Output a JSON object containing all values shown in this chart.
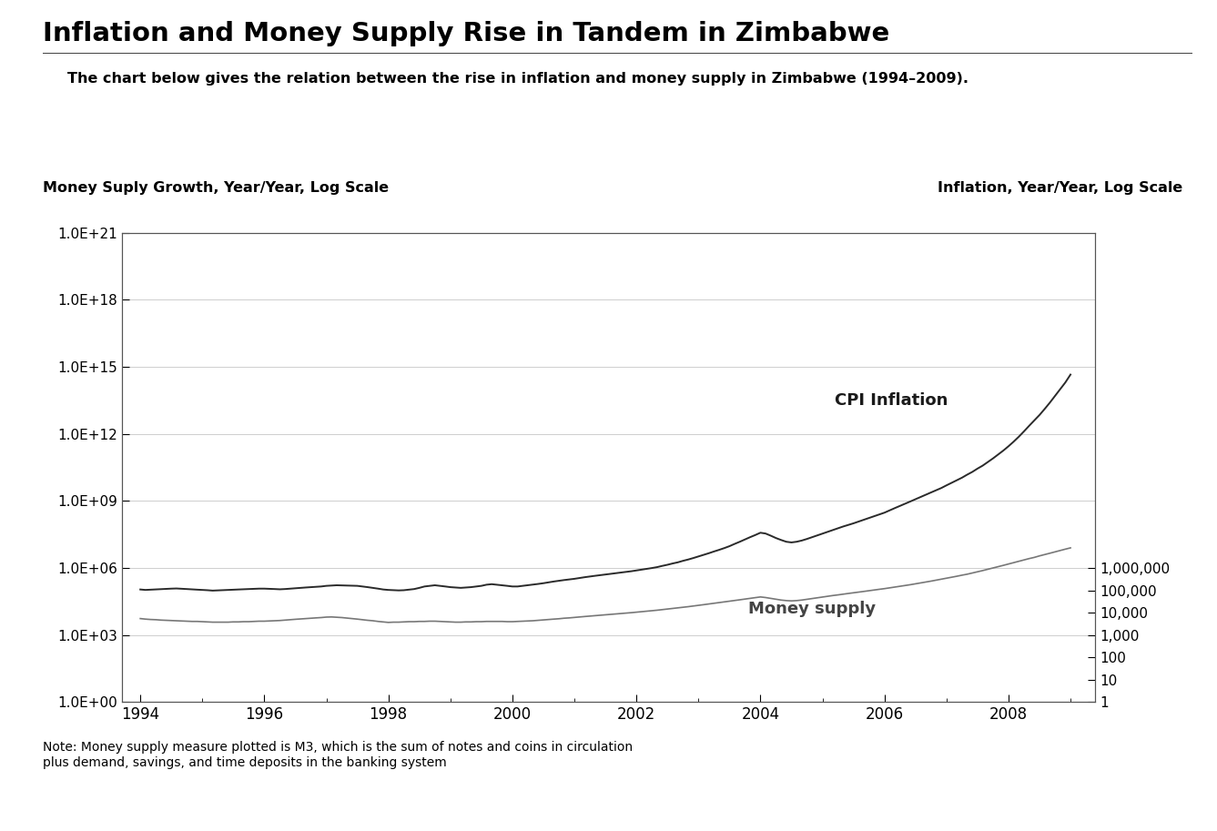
{
  "title": "Inflation and Money Supply Rise in Tandem in Zimbabwe",
  "subtitle": "The chart below gives the relation between the rise in inflation and money supply in Zimbabwe (1994–2009).",
  "left_ylabel": "Money Suply Growth, Year/Year, Log Scale",
  "right_ylabel": "Inflation, Year/Year, Log Scale",
  "note": "Note: Money supply measure plotted is M3, which is the sum of notes and coins in circulation\nplus demand, savings, and time deposits in the banking system",
  "cpi_label": "CPI Inflation",
  "money_label": "Money supply",
  "background_color": "#ffffff",
  "line_color_cpi": "#2a2a2a",
  "line_color_money": "#777777",
  "years": [
    1994.0,
    1994.083,
    1994.167,
    1994.25,
    1994.333,
    1994.417,
    1994.5,
    1994.583,
    1994.667,
    1994.75,
    1994.833,
    1994.917,
    1995.0,
    1995.083,
    1995.167,
    1995.25,
    1995.333,
    1995.417,
    1995.5,
    1995.583,
    1995.667,
    1995.75,
    1995.833,
    1995.917,
    1996.0,
    1996.083,
    1996.167,
    1996.25,
    1996.333,
    1996.417,
    1996.5,
    1996.583,
    1996.667,
    1996.75,
    1996.833,
    1996.917,
    1997.0,
    1997.083,
    1997.167,
    1997.25,
    1997.333,
    1997.417,
    1997.5,
    1997.583,
    1997.667,
    1997.75,
    1997.833,
    1997.917,
    1998.0,
    1998.083,
    1998.167,
    1998.25,
    1998.333,
    1998.417,
    1998.5,
    1998.583,
    1998.667,
    1998.75,
    1998.833,
    1998.917,
    1999.0,
    1999.083,
    1999.167,
    1999.25,
    1999.333,
    1999.417,
    1999.5,
    1999.583,
    1999.667,
    1999.75,
    1999.833,
    1999.917,
    2000.0,
    2000.083,
    2000.167,
    2000.25,
    2000.333,
    2000.417,
    2000.5,
    2000.583,
    2000.667,
    2000.75,
    2000.833,
    2000.917,
    2001.0,
    2001.083,
    2001.167,
    2001.25,
    2001.333,
    2001.417,
    2001.5,
    2001.583,
    2001.667,
    2001.75,
    2001.833,
    2001.917,
    2002.0,
    2002.083,
    2002.167,
    2002.25,
    2002.333,
    2002.417,
    2002.5,
    2002.583,
    2002.667,
    2002.75,
    2002.833,
    2002.917,
    2003.0,
    2003.083,
    2003.167,
    2003.25,
    2003.333,
    2003.417,
    2003.5,
    2003.583,
    2003.667,
    2003.75,
    2003.833,
    2003.917,
    2004.0,
    2004.083,
    2004.167,
    2004.25,
    2004.333,
    2004.417,
    2004.5,
    2004.583,
    2004.667,
    2004.75,
    2004.833,
    2004.917,
    2005.0,
    2005.083,
    2005.167,
    2005.25,
    2005.333,
    2005.417,
    2005.5,
    2005.583,
    2005.667,
    2005.75,
    2005.833,
    2005.917,
    2006.0,
    2006.083,
    2006.167,
    2006.25,
    2006.333,
    2006.417,
    2006.5,
    2006.583,
    2006.667,
    2006.75,
    2006.833,
    2006.917,
    2007.0,
    2007.083,
    2007.167,
    2007.25,
    2007.333,
    2007.417,
    2007.5,
    2007.583,
    2007.667,
    2007.75,
    2007.833,
    2007.917,
    2008.0,
    2008.083,
    2008.167,
    2008.25,
    2008.333,
    2008.417,
    2008.5,
    2008.583,
    2008.667,
    2008.75,
    2008.833,
    2008.917,
    2009.0
  ],
  "cpi_inflation": [
    110000.0,
    105000.0,
    108000.0,
    112000.0,
    115000.0,
    118000.0,
    120000.0,
    122000.0,
    118000.0,
    115000.0,
    112000.0,
    108000.0,
    105000.0,
    102000.0,
    98000.0,
    100000.0,
    102000.0,
    105000.0,
    108000.0,
    110000.0,
    112000.0,
    115000.0,
    118000.0,
    120000.0,
    120000.0,
    118000.0,
    115000.0,
    112000.0,
    115000.0,
    120000.0,
    125000.0,
    130000.0,
    135000.0,
    140000.0,
    145000.0,
    150000.0,
    160000.0,
    165000.0,
    170000.0,
    168000.0,
    165000.0,
    162000.0,
    160000.0,
    150000.0,
    140000.0,
    130000.0,
    120000.0,
    110000.0,
    105000.0,
    102000.0,
    100000.0,
    102000.0,
    108000.0,
    115000.0,
    130000.0,
    150000.0,
    160000.0,
    170000.0,
    160000.0,
    150000.0,
    140000.0,
    135000.0,
    130000.0,
    135000.0,
    140000.0,
    150000.0,
    160000.0,
    180000.0,
    190000.0,
    180000.0,
    170000.0,
    160000.0,
    150000.0,
    150000.0,
    160000.0,
    170000.0,
    180000.0,
    195000.0,
    210000.0,
    230000.0,
    250000.0,
    270000.0,
    290000.0,
    310000.0,
    330000.0,
    360000.0,
    390000.0,
    420000.0,
    450000.0,
    480000.0,
    510000.0,
    550000.0,
    590000.0,
    630000.0,
    670000.0,
    720000.0,
    780000.0,
    840000.0,
    920000.0,
    1000000.0,
    1100000.0,
    1250000.0,
    1400000.0,
    1600000.0,
    1800000.0,
    2100000.0,
    2400000.0,
    2800000.0,
    3300000.0,
    3900000.0,
    4600000.0,
    5500000.0,
    6500000.0,
    7800000.0,
    9500000.0,
    12000000.0,
    15000000.0,
    19000000.0,
    24000000.0,
    30000000.0,
    38000000.0,
    35000000.0,
    28000000.0,
    22000000.0,
    18000000.0,
    15000000.0,
    14000000.0,
    15000000.0,
    17000000.0,
    20000000.0,
    24000000.0,
    29000000.0,
    35000000.0,
    42000000.0,
    50000000.0,
    60000000.0,
    72000000.0,
    85000000.0,
    100000000.0,
    120000000.0,
    145000000.0,
    175000000.0,
    210000000.0,
    250000000.0,
    300000000.0,
    380000000.0,
    480000000.0,
    600000000.0,
    750000000.0,
    950000000.0,
    1200000000.0,
    1500000000.0,
    1900000000.0,
    2400000000.0,
    3000000000.0,
    3800000000.0,
    5000000000.0,
    6500000000.0,
    8500000000.0,
    11000000000.0,
    15000000000.0,
    20000000000.0,
    28000000000.0,
    38000000000.0,
    55000000000.0,
    80000000000.0,
    120000000000.0,
    180000000000.0,
    280000000000.0,
    450000000000.0,
    750000000000.0,
    1300000000000.0,
    2300000000000.0,
    4000000000000.0,
    7000000000000.0,
    13000000000000.0,
    25000000000000.0,
    50000000000000.0,
    100000000000000.0,
    200000000000000.0,
    450000000000000.0
  ],
  "money_supply": [
    5500,
    5200,
    5000,
    4900,
    4700,
    4600,
    4500,
    4400,
    4300,
    4200,
    4100,
    4100,
    4000,
    3900,
    3800,
    3800,
    3800,
    3800,
    3900,
    3900,
    4000,
    4000,
    4100,
    4200,
    4200,
    4300,
    4400,
    4500,
    4700,
    4900,
    5100,
    5300,
    5500,
    5700,
    5900,
    6100,
    6400,
    6500,
    6300,
    6100,
    5800,
    5500,
    5200,
    4900,
    4600,
    4400,
    4100,
    3900,
    3700,
    3800,
    3800,
    3900,
    4000,
    4000,
    4100,
    4100,
    4200,
    4200,
    4100,
    4000,
    3900,
    3800,
    3800,
    3900,
    3900,
    4000,
    4000,
    4100,
    4100,
    4100,
    4100,
    4000,
    4000,
    4100,
    4200,
    4300,
    4400,
    4600,
    4800,
    5000,
    5200,
    5400,
    5700,
    5900,
    6200,
    6500,
    6800,
    7100,
    7400,
    7800,
    8100,
    8500,
    8900,
    9300,
    9700,
    10100.0,
    10600.0,
    11100.0,
    11700.0,
    12300.0,
    13000.0,
    13800.0,
    14700.0,
    15600.0,
    16600.0,
    17600.0,
    18700.0,
    20000.0,
    21500.0,
    23000.0,
    24700.0,
    26500.0,
    28400.0,
    30500.0,
    32700.0,
    35200.0,
    38000.0,
    41000.0,
    44000.0,
    47500.0,
    51000.0,
    48000.0,
    44000.0,
    40000.0,
    37000.0,
    35000.0,
    34000.0,
    35000.0,
    37000.0,
    40000.0,
    43000.0,
    47000.0,
    51000.0,
    55000.0,
    59000.0,
    63000.0,
    68000.0,
    73000.0,
    78000.0,
    84000.0,
    90000.0,
    97000.0,
    104000.0,
    112000.0,
    120000.0,
    130000.0,
    140000.0,
    152000.0,
    165000.0,
    180000.0,
    197000.0,
    215000.0,
    235000.0,
    260000.0,
    287000.0,
    317000.0,
    350000.0,
    390000.0,
    430000.0,
    480000.0,
    530000.0,
    600000.0,
    680000.0,
    770000.0,
    880000.0,
    1000000.0,
    1150000.0,
    1320000.0,
    1520000.0,
    1750000.0,
    2000000.0,
    2300000.0,
    2650000.0,
    3000000.0,
    3500000.0,
    4000000.0,
    4600000.0,
    5300000.0,
    6100000.0,
    7000000.0,
    8000000.0
  ],
  "left_yticks": [
    1.0,
    1000.0,
    1000000.0,
    1000000000.0,
    1000000000000.0,
    1000000000000000.0,
    1e+18,
    1e+21
  ],
  "left_yticklabels": [
    "1.0E+00",
    "1.0E+03",
    "1.0E+06",
    "1.0E+09",
    "1.0E+12",
    "1.0E+15",
    "1.0E+18",
    "1.0E+21"
  ],
  "right_yticks": [
    1,
    10,
    100,
    1000,
    10000,
    100000,
    1000000
  ],
  "right_yticklabels": [
    "1",
    "10",
    "100",
    "1,000",
    "10,000",
    "100,000",
    "1,000,000"
  ],
  "xticks": [
    1994,
    1996,
    1998,
    2000,
    2002,
    2004,
    2006,
    2008
  ],
  "xlim": [
    1993.7,
    2009.4
  ],
  "left_ylim": [
    1.0,
    1e+21
  ],
  "right_ylim": [
    1,
    1000000
  ]
}
